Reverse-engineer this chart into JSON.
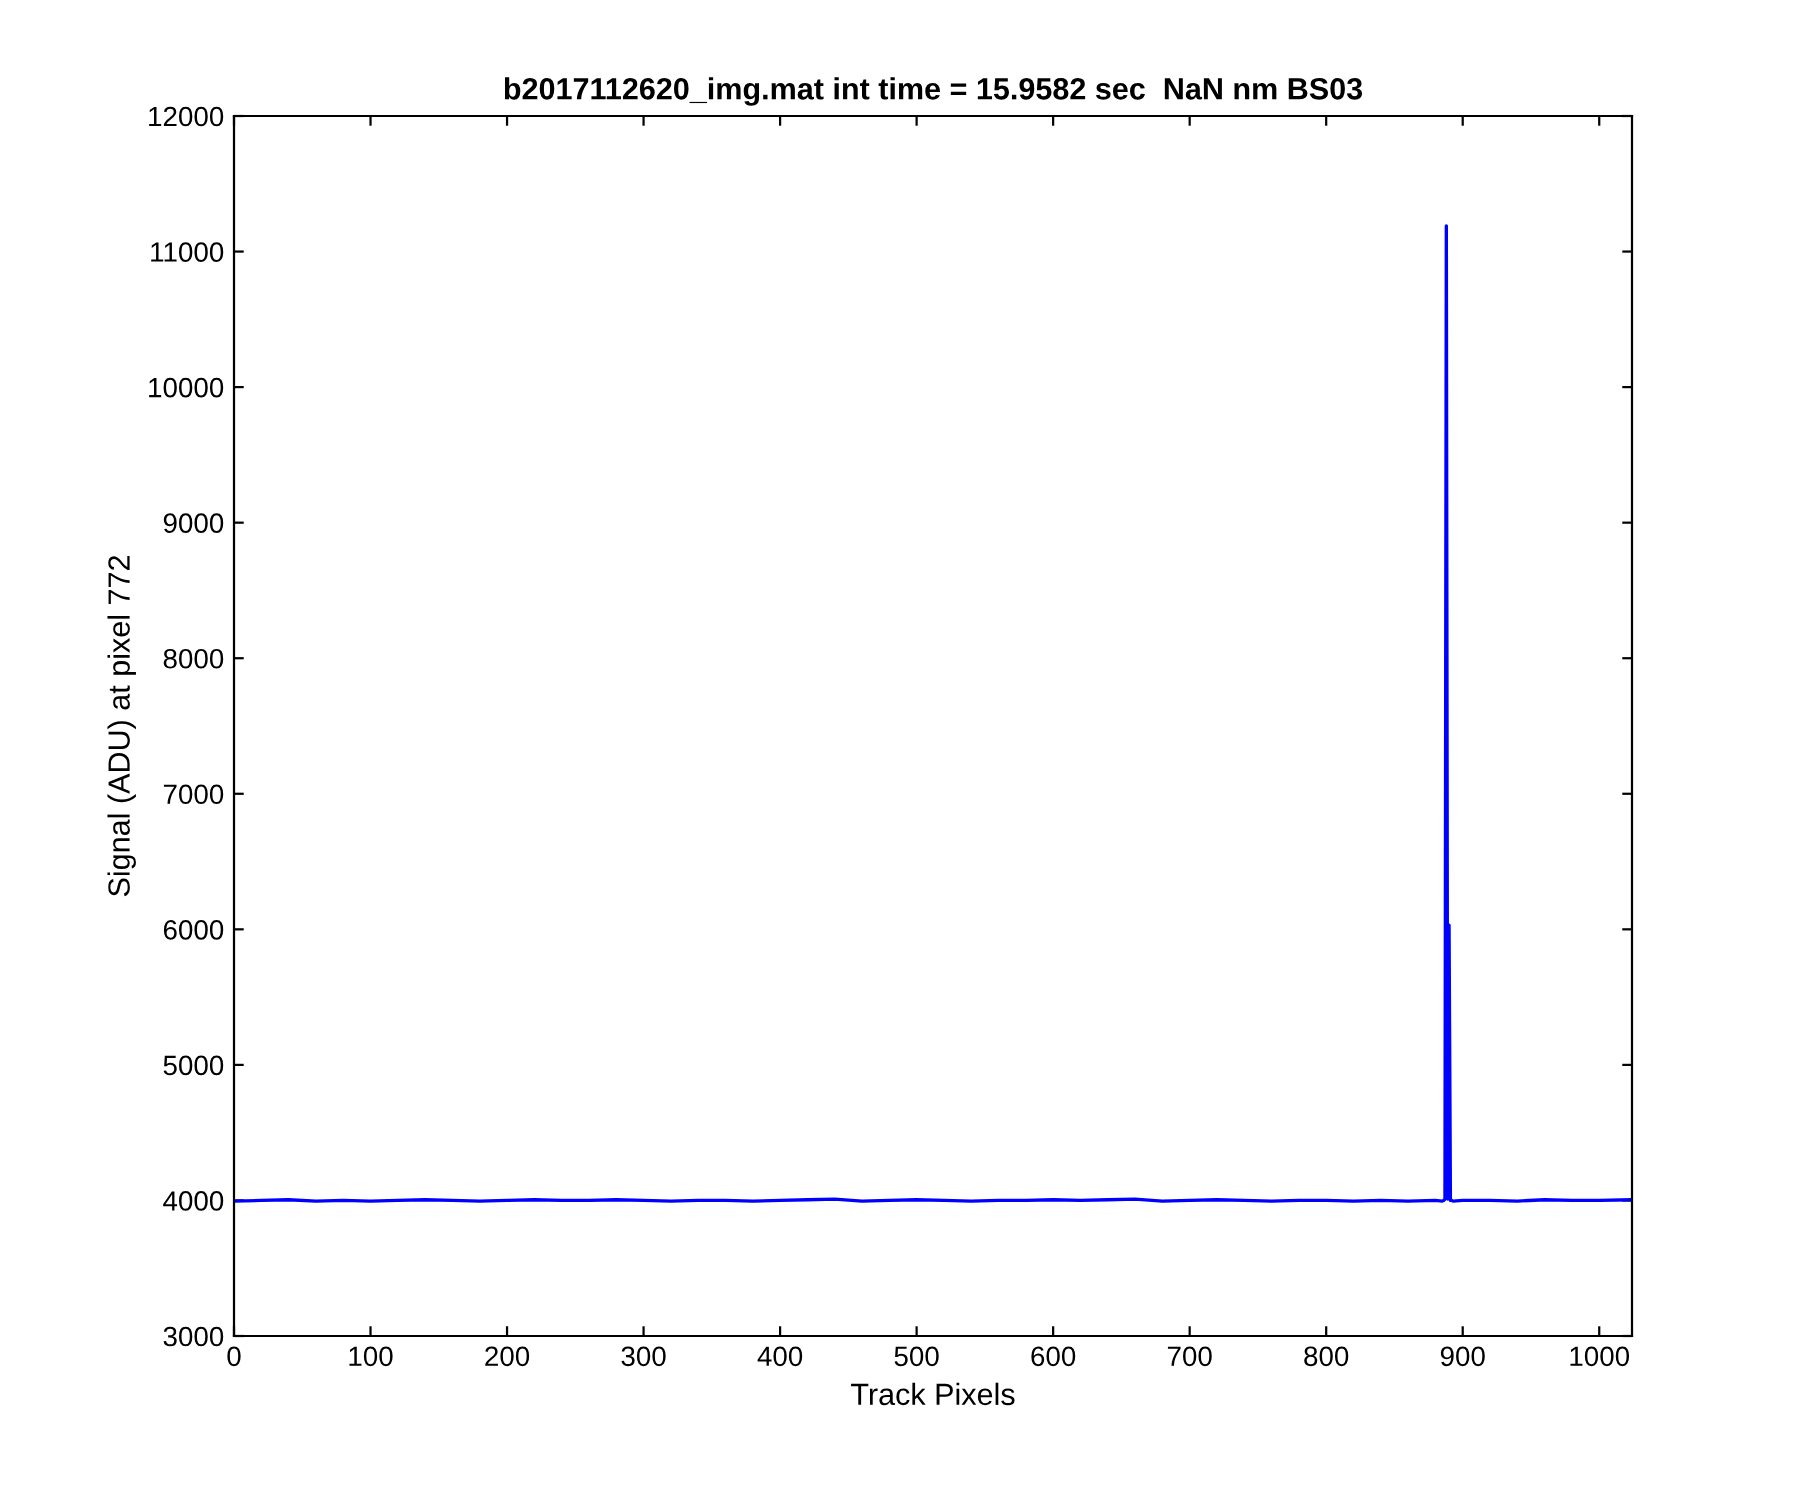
{
  "chart_data": {
    "type": "line",
    "title": "b2017112620_img.mat int time = 15.9582 sec  NaN nm BS03",
    "xlabel": "Track Pixels",
    "ylabel": "Signal (ADU) at pixel 772",
    "series": [
      {
        "color": "#0000ff",
        "x": [
          0,
          20,
          40,
          60,
          80,
          100,
          120,
          140,
          160,
          180,
          200,
          220,
          240,
          260,
          280,
          300,
          320,
          340,
          360,
          380,
          400,
          420,
          440,
          460,
          480,
          500,
          520,
          540,
          560,
          580,
          600,
          620,
          640,
          660,
          680,
          700,
          720,
          740,
          760,
          780,
          800,
          820,
          840,
          860,
          880,
          885,
          886,
          887,
          888,
          889,
          890,
          891,
          892,
          893,
          900,
          920,
          940,
          960,
          980,
          1000,
          1024
        ],
        "values": [
          3995,
          4000,
          4005,
          3995,
          4000,
          3995,
          4000,
          4005,
          4000,
          3995,
          4000,
          4005,
          4000,
          4000,
          4005,
          4000,
          3995,
          4000,
          4000,
          3995,
          4000,
          4005,
          4010,
          3995,
          4000,
          4005,
          4000,
          3995,
          4000,
          4000,
          4005,
          4000,
          4005,
          4010,
          3995,
          4000,
          4005,
          4000,
          3995,
          4000,
          4000,
          3995,
          4000,
          3995,
          4000,
          3995,
          4000,
          4010,
          11190,
          4010,
          6030,
          4000,
          4000,
          3995,
          4000,
          4000,
          3995,
          4005,
          4000,
          4000,
          4005
        ]
      }
    ],
    "xlim": [
      0,
      1024
    ],
    "xticks": [
      0,
      100,
      200,
      300,
      400,
      500,
      600,
      700,
      800,
      900,
      1000
    ],
    "ylim": [
      3000,
      12000
    ],
    "yticks": [
      3000,
      4000,
      5000,
      6000,
      7000,
      8000,
      9000,
      10000,
      11000,
      12000
    ],
    "grid": false,
    "legend": false
  }
}
